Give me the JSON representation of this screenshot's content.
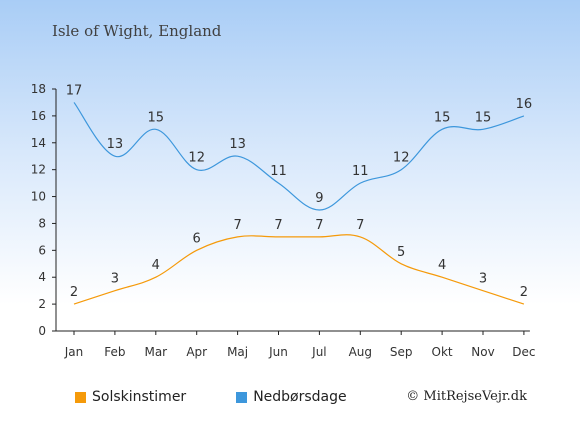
{
  "title": "Isle of Wight, England",
  "credit": "© MitRejseVejr.dk",
  "chart_data": {
    "type": "line",
    "categories": [
      "Jan",
      "Feb",
      "Mar",
      "Apr",
      "Maj",
      "Jun",
      "Jul",
      "Aug",
      "Sep",
      "Okt",
      "Nov",
      "Dec"
    ],
    "ylim": [
      0,
      18
    ],
    "yticks": [
      0,
      2,
      4,
      6,
      8,
      10,
      12,
      14,
      16,
      18
    ],
    "legend_position": "bottom-left",
    "series": [
      {
        "name": "Solskinstimer",
        "color": "#f59a0a",
        "values": [
          2,
          3,
          4,
          6,
          7,
          7,
          7,
          7,
          5,
          4,
          3,
          2
        ]
      },
      {
        "name": "Nedbørsdage",
        "color": "#3d97dc",
        "values": [
          17,
          13,
          15,
          12,
          13,
          11,
          9,
          11,
          12,
          15,
          15,
          16
        ]
      }
    ]
  },
  "colors": {
    "axis": "#222222",
    "text": "#333333"
  }
}
